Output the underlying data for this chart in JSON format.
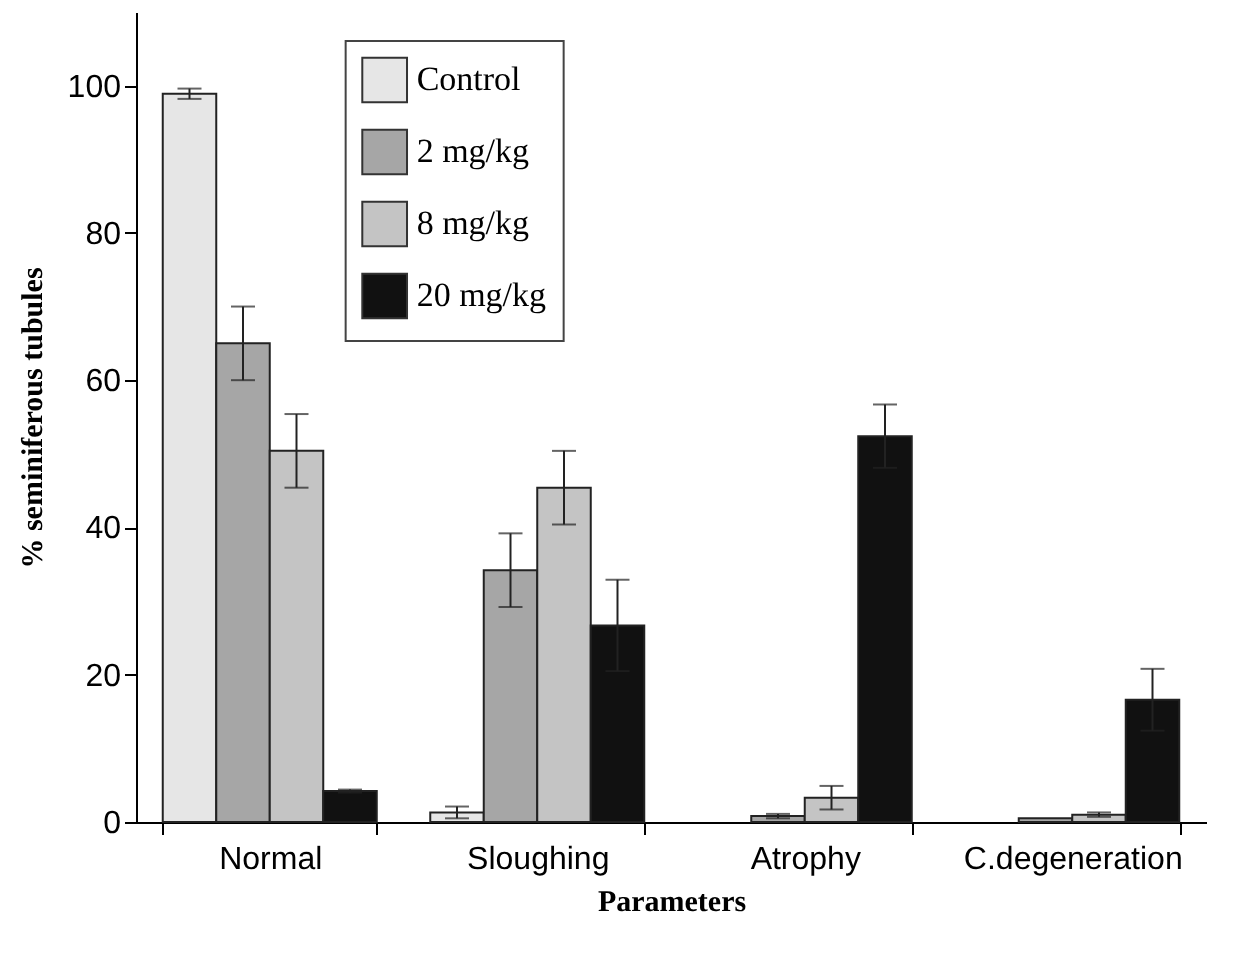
{
  "chart_data": {
    "type": "bar",
    "xlabel": "Parameters",
    "ylabel": "% seminiferous tubules",
    "categories": [
      "Normal",
      "Sloughing",
      "Atrophy",
      "C.degeneration"
    ],
    "series": [
      {
        "name": "Control",
        "color": "#e6e6e6",
        "values": [
          98.9,
          1.3,
          null,
          null
        ],
        "errors": [
          0.7,
          0.8,
          null,
          null
        ]
      },
      {
        "name": "2 mg/kg",
        "color": "#a6a6a6",
        "values": [
          65.0,
          34.2,
          0.8,
          0.5
        ],
        "errors": [
          5,
          5,
          0.3,
          null
        ]
      },
      {
        "name": "8 mg/kg",
        "color": "#c4c4c4",
        "values": [
          50.4,
          45.4,
          3.3,
          1.0
        ],
        "errors": [
          5,
          5,
          1.6,
          0.3
        ]
      },
      {
        "name": "20 mg/kg",
        "color": "#111111",
        "values": [
          4.2,
          26.7,
          52.4,
          16.6
        ],
        "errors": [
          0.2,
          6.2,
          4.3,
          4.2
        ]
      }
    ],
    "ylim": [
      0,
      110
    ],
    "yticks": [
      0,
      20,
      40,
      60,
      80,
      100
    ],
    "grid": false,
    "legend": "top left"
  }
}
